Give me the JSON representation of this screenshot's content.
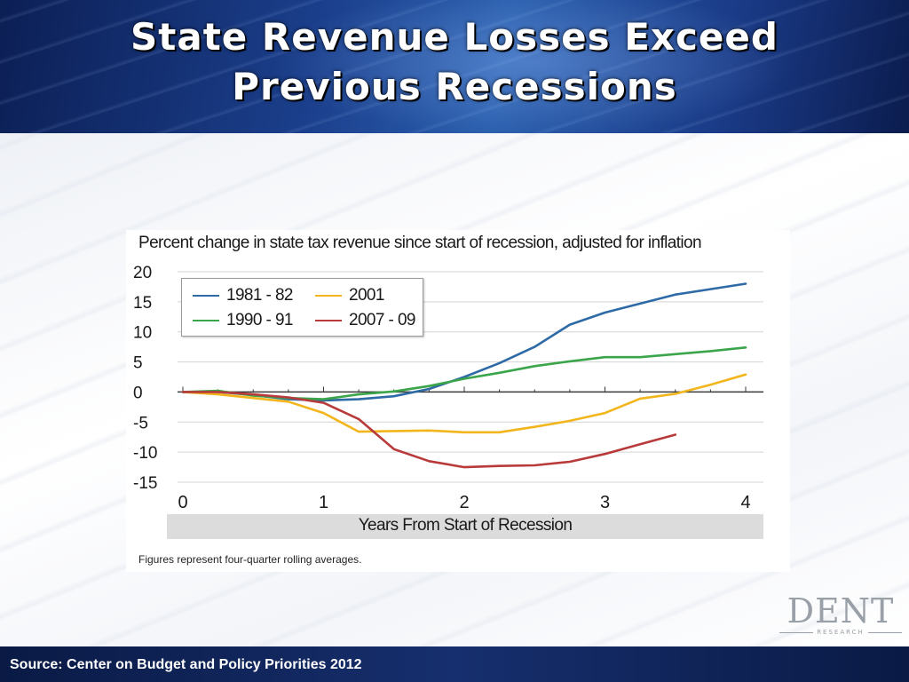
{
  "slide": {
    "title_line1": "State Revenue Losses Exceed",
    "title_line2": "Previous Recessions",
    "source": "Source: Center on Budget and Policy Priorities 2012",
    "logo_text": "DENT",
    "logo_subtext": "RESEARCH"
  },
  "chart_data": {
    "type": "line",
    "title": "Percent change in state tax revenue since start of recession, adjusted for inflation",
    "xlabel": "Years From Start of Recession",
    "ylabel": "",
    "note": "Figures represent four-quarter rolling averages.",
    "xlim": [
      0,
      4
    ],
    "ylim": [
      -15,
      20
    ],
    "x_ticks": [
      0,
      1,
      2,
      3,
      4
    ],
    "y_ticks": [
      20,
      15,
      10,
      5,
      0,
      -5,
      -10,
      -15
    ],
    "y_tick_labels": [
      "20",
      "15",
      "10",
      "5",
      "0",
      "-5",
      "-10",
      "-15"
    ],
    "grid": "horizontal",
    "legend_position": "top-left",
    "series": [
      {
        "name": "1981 - 82",
        "color": "#2d6aa6",
        "x": [
          0,
          0.25,
          0.5,
          0.75,
          1.0,
          1.25,
          1.5,
          1.75,
          2.0,
          2.25,
          2.5,
          2.75,
          3.0,
          3.25,
          3.5,
          3.75,
          4.0
        ],
        "y": [
          0,
          0,
          -0.5,
          -1.2,
          -1.4,
          -1.2,
          -0.7,
          0.5,
          2.5,
          4.8,
          7.5,
          11.2,
          13.2,
          14.7,
          16.2,
          17.1,
          18.0
        ]
      },
      {
        "name": "2001",
        "color": "#f2b51c",
        "x": [
          0,
          0.25,
          0.5,
          0.75,
          1.0,
          1.25,
          1.5,
          1.75,
          2.0,
          2.25,
          2.5,
          2.75,
          3.0,
          3.25,
          3.5,
          3.75,
          4.0
        ],
        "y": [
          0,
          -0.4,
          -1.0,
          -1.6,
          -3.5,
          -6.6,
          -6.5,
          -6.4,
          -6.7,
          -6.7,
          -5.8,
          -4.8,
          -3.5,
          -1.1,
          -0.3,
          1.2,
          2.9
        ]
      },
      {
        "name": "1990 - 91",
        "color": "#3aa54a",
        "x": [
          0,
          0.25,
          0.5,
          0.75,
          1.0,
          1.25,
          1.5,
          1.75,
          2.0,
          2.25,
          2.5,
          2.75,
          3.0,
          3.25,
          3.5,
          3.75,
          4.0
        ],
        "y": [
          0,
          0.2,
          -0.6,
          -1.0,
          -1.2,
          -0.4,
          0.1,
          1.0,
          2.2,
          3.2,
          4.3,
          5.1,
          5.8,
          5.8,
          6.3,
          6.8,
          7.4
        ]
      },
      {
        "name": "2007 - 09",
        "color": "#b83a3a",
        "x": [
          0,
          0.25,
          0.5,
          0.75,
          1.0,
          1.25,
          1.5,
          1.75,
          2.0,
          2.25,
          2.5,
          2.75,
          3.0,
          3.25,
          3.5
        ],
        "y": [
          0,
          0,
          -0.4,
          -0.9,
          -1.8,
          -4.5,
          -9.5,
          -11.5,
          -12.5,
          -12.3,
          -12.2,
          -11.6,
          -10.3,
          -8.7,
          -7.1
        ]
      }
    ]
  }
}
